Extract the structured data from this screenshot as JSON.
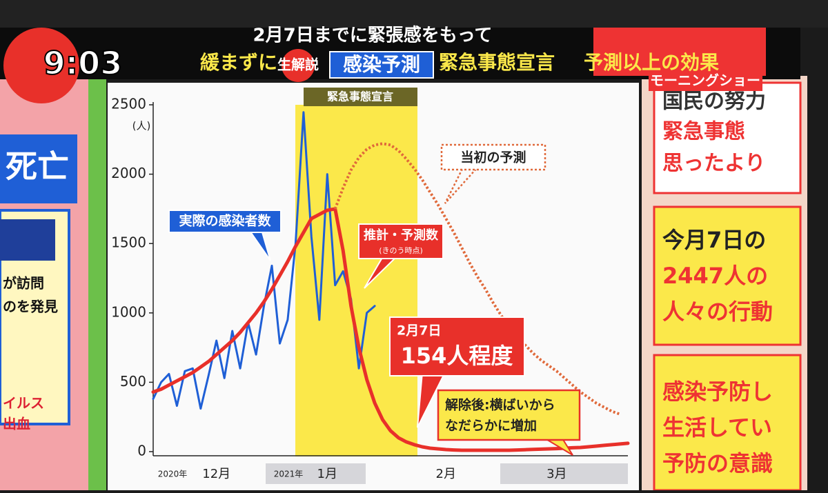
{
  "screen": {
    "clock": "9:03",
    "headline_top": "2月7日までに緊張感をもって",
    "headline_parts": [
      "緩まずに",
      "生解説",
      "感染予測",
      "緊急事態宣言",
      "予測以上の効果"
    ],
    "program": "モーニングショー",
    "left_panel": [
      "死亡",
      "が訪問",
      "のを発見",
      "イルス",
      "出血"
    ],
    "right_panel": [
      "国民の努力",
      "緊急事態",
      "思ったより",
      "今月7日の",
      "2447人の",
      "人々の行動",
      "感染予防し",
      "生活してい",
      "予防の意識"
    ]
  },
  "chart_data": {
    "type": "line",
    "ylabel": "(人)",
    "ylim": [
      0,
      2500
    ],
    "yticks": [
      0,
      500,
      1000,
      1500,
      2000,
      2500
    ],
    "shaded_label": "緊急事態宣言",
    "categories": [
      null,
      null,
      null,
      null,
      null,
      null,
      null,
      null,
      "12月",
      null,
      null,
      null,
      null,
      null,
      null,
      null,
      null,
      null,
      null,
      null,
      null,
      null,
      "1月",
      null,
      null,
      null,
      null,
      null,
      null,
      null,
      null,
      null,
      null,
      null,
      null,
      null,
      null,
      "2月",
      null,
      null,
      null,
      null,
      null,
      null,
      null,
      null,
      null,
      null,
      null,
      null,
      null,
      "3月",
      null,
      null,
      null,
      null,
      null,
      null,
      null,
      null,
      null
    ],
    "year_labels": [
      "2020年",
      "2021年"
    ],
    "series": [
      {
        "name": "実際の感染者数",
        "color": "#1f5fd6",
        "values": [
          380,
          500,
          560,
          330,
          580,
          600,
          310,
          550,
          800,
          530,
          870,
          600,
          930,
          700,
          1050,
          1340,
          780,
          950,
          1500,
          2447,
          1550,
          950,
          2000,
          1200,
          1300,
          1100,
          600,
          1000,
          1050,
          null,
          null,
          null,
          null,
          null,
          null,
          null,
          null,
          null,
          null,
          null,
          null,
          null,
          null,
          null,
          null,
          null,
          null,
          null,
          null,
          null,
          null,
          null,
          null,
          null,
          null,
          null,
          null,
          null,
          null,
          null,
          null
        ]
      },
      {
        "name": "推計・予測数",
        "color": "#e8302a",
        "values": [
          430,
          450,
          480,
          510,
          540,
          570,
          610,
          650,
          700,
          750,
          800,
          860,
          930,
          1000,
          1080,
          1170,
          1270,
          1370,
          1480,
          1580,
          1680,
          1710,
          1740,
          1750,
          1450,
          1050,
          750,
          520,
          350,
          230,
          150,
          100,
          70,
          50,
          35,
          25,
          20,
          15,
          12,
          10,
          10,
          10,
          10,
          10,
          10,
          10,
          12,
          14,
          16,
          18,
          20,
          22,
          25,
          28,
          30,
          35,
          40,
          45,
          50,
          55,
          60
        ]
      },
      {
        "name": "当初の予測",
        "color": "#e0693a",
        "dashed": true,
        "values": [
          null,
          null,
          null,
          null,
          null,
          null,
          null,
          null,
          null,
          null,
          null,
          null,
          null,
          null,
          null,
          null,
          null,
          null,
          null,
          null,
          null,
          null,
          null,
          1750,
          1900,
          2030,
          2120,
          2180,
          2210,
          2220,
          2210,
          2170,
          2110,
          2040,
          1960,
          1870,
          1780,
          1680,
          1580,
          1470,
          1360,
          1260,
          1170,
          1070,
          980,
          900,
          830,
          770,
          710,
          660,
          620,
          580,
          530,
          480,
          430,
          390,
          350,
          320,
          290,
          270,
          null
        ]
      }
    ],
    "annotations": [
      "(きのう時点)",
      "2月7日",
      "154人程度",
      "解除後:横ばいから",
      "なだらかに増加"
    ]
  }
}
